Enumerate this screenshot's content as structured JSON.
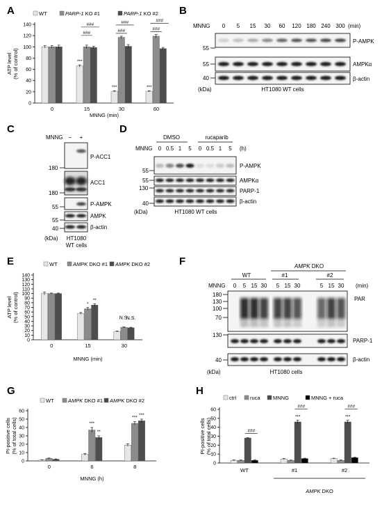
{
  "panels": {
    "A": {
      "letter": "A"
    },
    "B": {
      "letter": "B"
    },
    "C": {
      "letter": "C"
    },
    "D": {
      "letter": "D"
    },
    "E": {
      "letter": "E"
    },
    "F": {
      "letter": "F"
    },
    "G": {
      "letter": "G"
    },
    "H": {
      "letter": "H"
    }
  },
  "chart_data": [
    {
      "id": "A",
      "type": "bar",
      "ylabel": "ATP level\n(% of control)",
      "xlabel": "MNNG (min)",
      "categories": [
        "0",
        "15",
        "30",
        "60"
      ],
      "ylim": [
        0,
        140
      ],
      "yticks": [
        0,
        20,
        40,
        60,
        80,
        100,
        120,
        140
      ],
      "series": [
        {
          "name": "WT",
          "values": [
            100,
            66,
            21,
            21
          ],
          "color": "#e6e6e6"
        },
        {
          "name": "PARP-1 KO #1",
          "values": [
            100,
            100,
            117,
            119
          ],
          "color": "#8c8c8c"
        },
        {
          "name": "PARP-1 KO #2",
          "values": [
            100,
            99,
            101,
            97
          ],
          "color": "#4d4d4d"
        }
      ],
      "legend": [
        {
          "italic": "",
          "rest": "WT"
        },
        {
          "italic": "PARP-1",
          "rest": " KO #1"
        },
        {
          "italic": "PARP-1",
          "rest": " KO #2"
        }
      ],
      "annotations": [
        "***",
        "###",
        "###",
        "***",
        "###",
        "###",
        "***",
        "###",
        "###"
      ]
    },
    {
      "id": "E",
      "type": "bar",
      "ylabel": "ATP level\n(% of control)",
      "xlabel": "MNNG (min)",
      "categories": [
        "0",
        "15",
        "30"
      ],
      "ylim": [
        0,
        140
      ],
      "yticks": [
        0,
        10,
        20,
        30,
        40,
        50,
        60,
        70,
        80,
        90,
        100,
        110,
        120,
        130,
        140
      ],
      "series": [
        {
          "name": "WT",
          "values": [
            100,
            57,
            18
          ],
          "color": "#e6e6e6"
        },
        {
          "name": "AMPK DKO #1",
          "values": [
            100,
            67,
            27
          ],
          "color": "#8c8c8c"
        },
        {
          "name": "AMPK DKO #2",
          "values": [
            100,
            75,
            26
          ],
          "color": "#4d4d4d"
        }
      ],
      "legend": [
        {
          "italic": "",
          "rest": "WT"
        },
        {
          "italic": "AMPK",
          "rest": " DKO #1"
        },
        {
          "italic": "AMPK",
          "rest": " DKO #2"
        }
      ],
      "annotations": [
        "*",
        "**",
        "N.S.",
        "N.S."
      ]
    },
    {
      "id": "G",
      "type": "bar",
      "ylabel": "PI-positive cells\n(% of total cells)",
      "xlabel": "MNNG (h)",
      "categories": [
        "0",
        "6",
        "8"
      ],
      "ylim": [
        0,
        60
      ],
      "yticks": [
        0,
        10,
        20,
        30,
        40,
        50,
        60
      ],
      "series": [
        {
          "name": "WT",
          "values": [
            1,
            8,
            19
          ],
          "color": "#e6e6e6"
        },
        {
          "name": "AMPK DKO #1",
          "values": [
            3,
            37,
            45
          ],
          "color": "#8c8c8c"
        },
        {
          "name": "AMPK DKO #2",
          "values": [
            2,
            28,
            48
          ],
          "color": "#4d4d4d"
        }
      ],
      "legend": [
        {
          "italic": "",
          "rest": "WT"
        },
        {
          "italic": "AMPK",
          "rest": " DKO #1"
        },
        {
          "italic": "AMPK",
          "rest": " DKO #2"
        }
      ],
      "annotations": [
        "***",
        "**",
        "***",
        "***"
      ]
    },
    {
      "id": "H",
      "type": "bar",
      "ylabel": "PI-positive cells\n(% of total cells)",
      "xlabel": "AMPK DKO",
      "categories": [
        "WT",
        "#1",
        "#2"
      ],
      "ylim": [
        0,
        60
      ],
      "yticks": [
        0,
        10,
        20,
        30,
        40,
        50,
        60
      ],
      "series": [
        {
          "name": "ctrl",
          "values": [
            3,
            4.5,
            5
          ],
          "color": "#e6e6e6"
        },
        {
          "name": "ruca",
          "values": [
            3,
            3,
            3
          ],
          "color": "#8c8c8c"
        },
        {
          "name": "MNNG",
          "values": [
            28,
            46,
            46
          ],
          "color": "#4d4d4d"
        },
        {
          "name": "MNNG + ruca",
          "values": [
            3,
            5,
            6
          ],
          "color": "#000000"
        }
      ],
      "legend": [
        {
          "italic": "",
          "rest": "ctrl"
        },
        {
          "italic": "",
          "rest": "ruca"
        },
        {
          "italic": "",
          "rest": "MNNG"
        },
        {
          "italic": "",
          "rest": "MNNG + ruca"
        }
      ],
      "annotations": [
        "###",
        "###",
        "###",
        "***",
        "***"
      ]
    }
  ],
  "blots": {
    "B": {
      "header_label": "MNNG",
      "lanes": [
        "0",
        "5",
        "15",
        "30",
        "60",
        "120",
        "180",
        "240",
        "300"
      ],
      "unit": "(min)",
      "rows": [
        "P-AMPK",
        "AMPKα",
        "β-actin"
      ],
      "markers": [
        "55",
        "55",
        "40"
      ],
      "kda": "(kDa)",
      "caption": "HT1080 WT cells"
    },
    "C": {
      "header_label": "MNNG",
      "lanes": [
        "−",
        "+"
      ],
      "rows": [
        "P-ACC1",
        "ACC1",
        "P-AMPK",
        "AMPK",
        "β-actin"
      ],
      "markers": [
        "180",
        "180",
        "55",
        "55",
        "40"
      ],
      "kda": "(kDa)",
      "caption1": "HT1080",
      "caption2": "WT cells"
    },
    "D": {
      "header_label": "MNNG",
      "group1": "DMSO",
      "group2": "rucaparib",
      "lanes": [
        "0",
        "0.5",
        "1",
        "5",
        "0",
        "0.5",
        "1",
        "5"
      ],
      "unit": "(h)",
      "rows": [
        "P-AMPK",
        "AMPKα",
        "PARP-1",
        "β-actin"
      ],
      "markers": [
        "55",
        "55",
        "130",
        "40"
      ],
      "kda": "(kDa)",
      "caption": "HT1080 WT cells"
    },
    "F": {
      "header_label": "MNNG",
      "group_ampk": "AMPK",
      "group_dko": " DKO",
      "group_wt": "WT",
      "group_1": "#1",
      "group_2": "#2",
      "lanes": [
        "0",
        "5",
        "15",
        "30",
        "5",
        "15",
        "30",
        "5",
        "15",
        "30"
      ],
      "unit": "(min)",
      "rows": [
        "PAR",
        "PARP-1",
        "β-actin"
      ],
      "markers": [
        "180",
        "130",
        "100",
        "70",
        "130",
        "40"
      ],
      "kda": "(kDa)",
      "caption": "HT1080 cells"
    }
  },
  "colors": {
    "band": "#1a1a1a",
    "membrane": "#f4f4f4",
    "axis": "#000000"
  }
}
